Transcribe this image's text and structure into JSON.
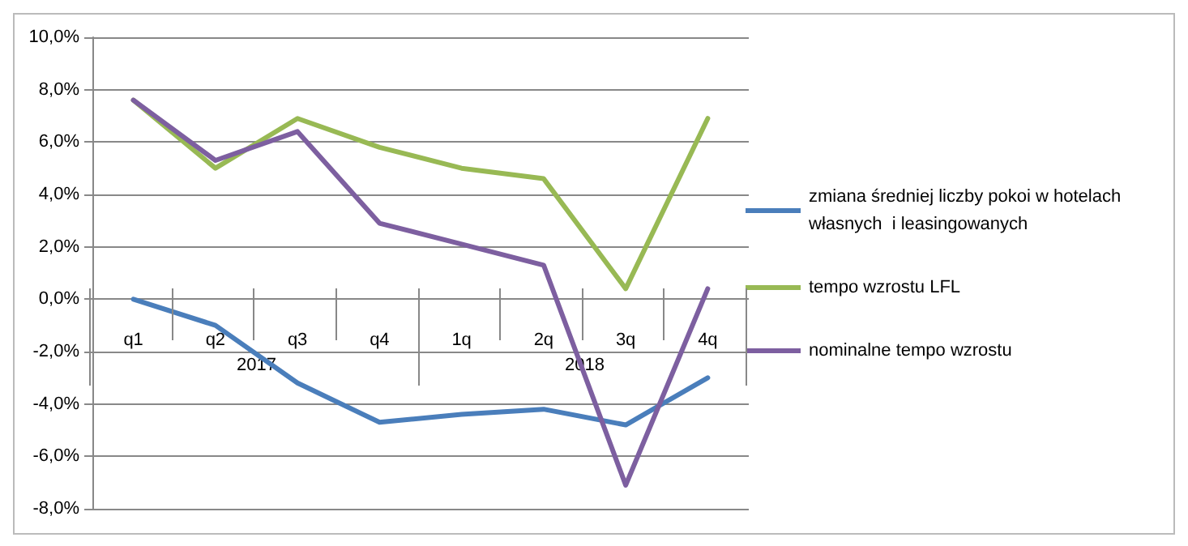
{
  "chart_data": {
    "type": "line",
    "categories": [
      "q1",
      "q2",
      "q3",
      "q4",
      "1q",
      "2q",
      "3q",
      "4q"
    ],
    "annotations": [
      "2017",
      "2018"
    ],
    "series": [
      {
        "name": "zmiana średniej liczby pokoi w hotelach własnych  i leasingowanych",
        "color": "#4a7ebb",
        "values": [
          0,
          -1.0,
          -3.2,
          -4.7,
          -4.4,
          -4.2,
          -4.8,
          -3.0
        ]
      },
      {
        "name": "tempo wzrostu LFL",
        "color": "#98b954",
        "values": [
          7.6,
          5.0,
          6.9,
          5.8,
          5.0,
          4.6,
          0.4,
          6.9
        ]
      },
      {
        "name": "nominalne tempo wzrostu",
        "color": "#7d5fa0",
        "values": [
          7.6,
          5.3,
          6.4,
          2.9,
          2.1,
          1.3,
          -7.1,
          0.4
        ]
      }
    ],
    "ylim": [
      -8,
      10
    ],
    "yticks": [
      {
        "value": -8,
        "label": "-8,0%"
      },
      {
        "value": -6,
        "label": "-6,0%"
      },
      {
        "value": -4,
        "label": "-4,0%"
      },
      {
        "value": -2,
        "label": "-2,0%"
      },
      {
        "value": 0,
        "label": "0,0%"
      },
      {
        "value": 2,
        "label": "2,0%"
      },
      {
        "value": 4,
        "label": "4,0%"
      },
      {
        "value": 6,
        "label": "6,0%"
      },
      {
        "value": 8,
        "label": "8,0%"
      },
      {
        "value": 10,
        "label": "10,0%"
      }
    ],
    "grid": "y",
    "legend": "right",
    "marker": "none",
    "line_style": "solid"
  }
}
